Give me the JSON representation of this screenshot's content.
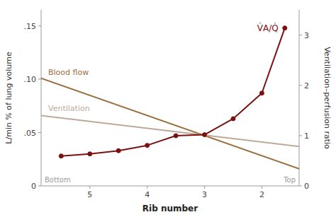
{
  "chart_data": {
    "type": "line",
    "xlabel": "Rib number",
    "ylabel": "L/min % of lung volume",
    "y2label": "Ventilation–perfusion ratio",
    "xlim": [
      5.85,
      1.35
    ],
    "ylim": [
      0,
      0.165
    ],
    "y2lim": [
      0,
      3.5
    ],
    "xticks": [
      5,
      4,
      3,
      2
    ],
    "yticks": [
      0,
      {
        "value": 0.05,
        "label": ".05"
      },
      {
        "value": 0.1,
        "label": ".10"
      },
      {
        "value": 0.15,
        "label": ".15"
      }
    ],
    "y2ticks": [
      0,
      1,
      2,
      3
    ],
    "grid": false,
    "annotations": [
      {
        "text": "Bottom"
      },
      {
        "text": "Top"
      }
    ],
    "series": [
      {
        "name": "Blood flow",
        "color": "#9a7040",
        "x": [
          5.85,
          1.35
        ],
        "values": [
          0.101,
          0.016
        ]
      },
      {
        "name": "Ventilation",
        "color": "#c0a898",
        "x": [
          5.85,
          1.35
        ],
        "values": [
          0.066,
          0.037
        ]
      },
      {
        "name": "V̇A/Q̇",
        "color": "#7b1010",
        "marker": "circle",
        "x": [
          5.5,
          5.0,
          4.5,
          4.0,
          3.5,
          3.0,
          2.5,
          2.0,
          1.6
        ],
        "values": [
          0.028,
          0.03,
          0.033,
          0.038,
          0.047,
          0.048,
          0.063,
          0.087,
          0.148
        ]
      }
    ]
  }
}
